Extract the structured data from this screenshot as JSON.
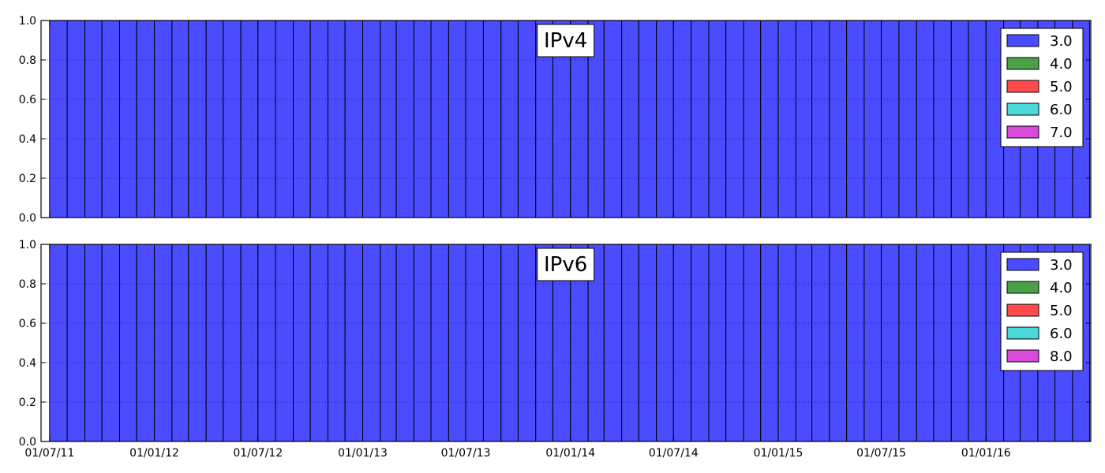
{
  "chart_data": [
    {
      "type": "bar",
      "stacked": true,
      "title": "IPv4",
      "x_start": "2011-07-01",
      "x_end": "2016-07-01",
      "bar_interval_months": 1,
      "ylim": [
        0,
        1
      ],
      "yticks": [
        "0.0",
        "0.2",
        "0.4",
        "0.6",
        "0.8",
        "1.0"
      ],
      "xticks": [
        "01/07/11",
        "01/01/12",
        "01/07/12",
        "01/01/13",
        "01/07/13",
        "01/01/14",
        "01/07/14",
        "01/01/15",
        "01/07/15",
        "01/01/16"
      ],
      "xtick_labels_visible": false,
      "grid": true,
      "legend_position": "top-right",
      "series": [
        {
          "name": "3.0",
          "color": "#4b4bff",
          "value_all": 1.0
        },
        {
          "name": "4.0",
          "color": "#4aa14a",
          "value_all": 0.0
        },
        {
          "name": "5.0",
          "color": "#ff4b4b",
          "value_all": 0.0
        },
        {
          "name": "6.0",
          "color": "#4bd8d8",
          "value_all": 0.0
        },
        {
          "name": "7.0",
          "color": "#d84bd8",
          "value_all": 0.0
        }
      ]
    },
    {
      "type": "bar",
      "stacked": true,
      "title": "IPv6",
      "x_start": "2011-07-01",
      "x_end": "2016-07-01",
      "bar_interval_months": 1,
      "ylim": [
        0,
        1
      ],
      "yticks": [
        "0.0",
        "0.2",
        "0.4",
        "0.6",
        "0.8",
        "1.0"
      ],
      "xticks": [
        "01/07/11",
        "01/01/12",
        "01/07/12",
        "01/01/13",
        "01/07/13",
        "01/01/14",
        "01/07/14",
        "01/01/15",
        "01/07/15",
        "01/01/16"
      ],
      "xtick_labels_visible": true,
      "grid": true,
      "legend_position": "top-right",
      "series": [
        {
          "name": "3.0",
          "color": "#4b4bff",
          "value_all": 1.0
        },
        {
          "name": "4.0",
          "color": "#4aa14a",
          "value_all": 0.0
        },
        {
          "name": "5.0",
          "color": "#ff4b4b",
          "value_all": 0.0
        },
        {
          "name": "6.0",
          "color": "#4bd8d8",
          "value_all": 0.0
        },
        {
          "name": "8.0",
          "color": "#d84bd8",
          "value_all": 0.0
        }
      ]
    }
  ]
}
